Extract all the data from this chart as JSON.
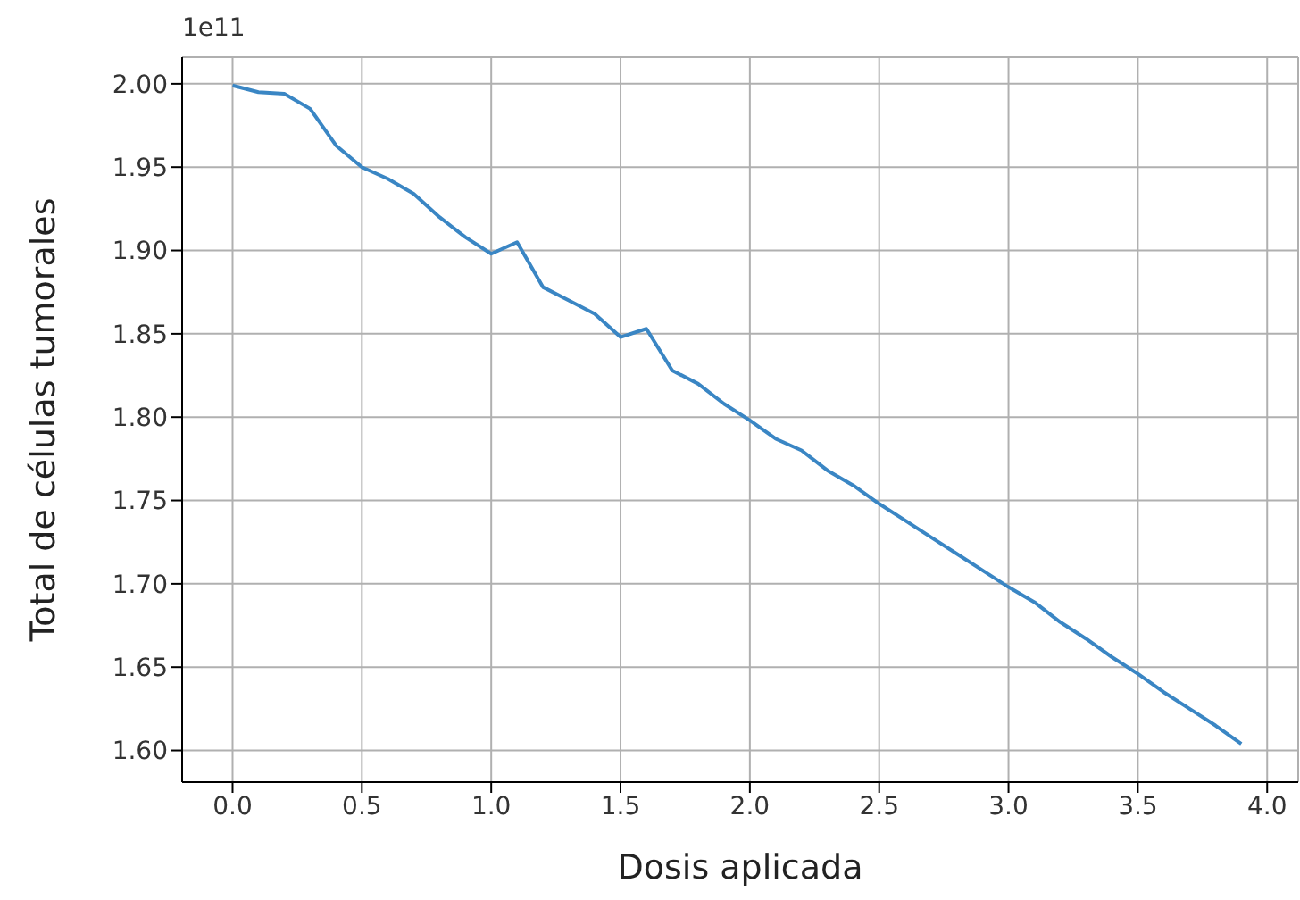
{
  "chart_data": {
    "type": "line",
    "xlabel": "Dosis aplicada",
    "ylabel": "Total de células tumorales",
    "annotations": [
      "1e11"
    ],
    "x": [
      0,
      0.1,
      0.2,
      0.3,
      0.4,
      0.5,
      0.6,
      0.7,
      0.8,
      0.9,
      1.0,
      1.1,
      1.2,
      1.3,
      1.4,
      1.5,
      1.6,
      1.7,
      1.8,
      1.9,
      2.0,
      2.1,
      2.2,
      2.3,
      2.4,
      2.5,
      2.6,
      2.7,
      2.8,
      2.9,
      3.0,
      3.1,
      3.2,
      3.3,
      3.4,
      3.5,
      3.6,
      3.7,
      3.8,
      3.9
    ],
    "series": [
      {
        "color": "#3a86c4",
        "values": [
          1.999,
          1.995,
          1.994,
          1.985,
          1.963,
          1.95,
          1.943,
          1.934,
          1.92,
          1.908,
          1.898,
          1.905,
          1.878,
          1.87,
          1.862,
          1.848,
          1.853,
          1.828,
          1.82,
          1.808,
          1.798,
          1.787,
          1.78,
          1.768,
          1.759,
          1.748,
          1.738,
          1.728,
          1.718,
          1.708,
          1.698,
          1.689,
          1.677,
          1.667,
          1.656,
          1.646,
          1.635,
          1.625,
          1.615,
          1.604
        ]
      }
    ],
    "xlim": [
      -0.195,
      4.12
    ],
    "xticks": [
      {
        "value": 0,
        "label": "0.0"
      },
      0.5,
      {
        "value": 1,
        "label": "1.0"
      },
      1.5,
      {
        "value": 2,
        "label": "2.0"
      },
      2.5,
      {
        "value": 3,
        "label": "3.0"
      },
      3.5,
      {
        "value": 4,
        "label": "4.0"
      }
    ],
    "ylim": [
      1.581,
      2.016
    ],
    "yticks": [
      {
        "value": 1.6,
        "label": "1.60"
      },
      1.65,
      {
        "value": 1.7,
        "label": "1.70"
      },
      1.75,
      {
        "value": 1.8,
        "label": "1.80"
      },
      1.85,
      {
        "value": 1.9,
        "label": "1.90"
      },
      1.95,
      {
        "value": 2,
        "label": "2.00"
      }
    ],
    "grid": true,
    "line_style": "solid",
    "marker": "none"
  }
}
